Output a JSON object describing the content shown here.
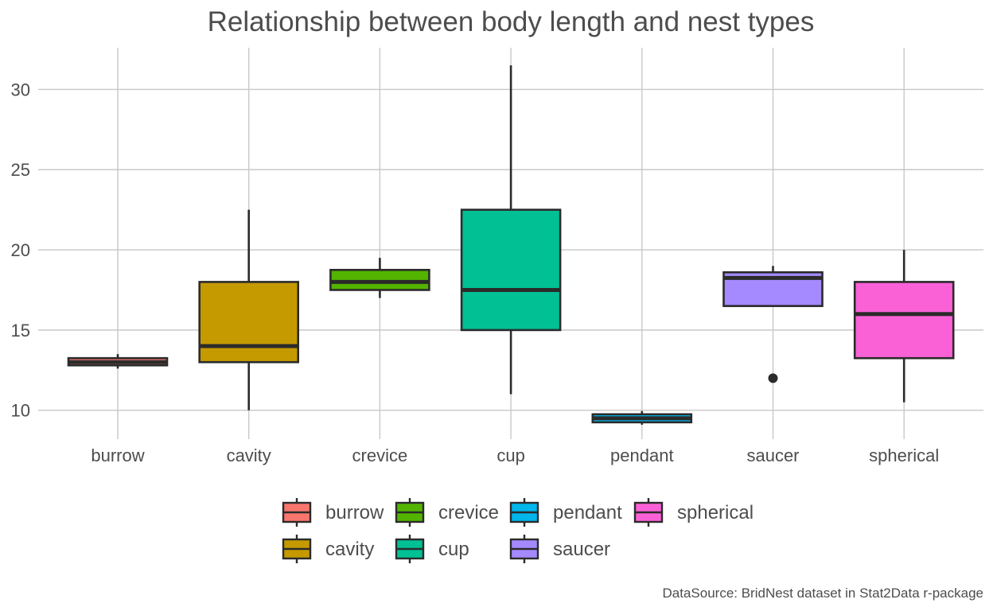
{
  "chart_data": {
    "type": "boxplot",
    "title": "Relationship between body length and nest types",
    "xlabel": "",
    "ylabel": "",
    "caption": "DataSource: BridNest dataset in Stat2Data r-package",
    "ylim": [
      8.2,
      32.6
    ],
    "y_ticks": [
      10,
      15,
      20,
      25,
      30
    ],
    "y_tick_labels": [
      "10",
      "15",
      "20",
      "25",
      "30"
    ],
    "grid": true,
    "legend_position": "bottom",
    "categories": [
      "burrow",
      "cavity",
      "crevice",
      "cup",
      "pendant",
      "saucer",
      "spherical"
    ],
    "colors": {
      "burrow": "#F8766D",
      "cavity": "#C49A00",
      "crevice": "#53B400",
      "cup": "#00C094",
      "pendant": "#00B6EB",
      "saucer": "#A58AFF",
      "spherical": "#FB61D7"
    },
    "boxes": [
      {
        "category": "burrow",
        "min": 12.6,
        "q1": 12.8,
        "median": 13.0,
        "q3": 13.25,
        "max": 13.5,
        "outliers": []
      },
      {
        "category": "cavity",
        "min": 10.0,
        "q1": 13.0,
        "median": 14.0,
        "q3": 18.0,
        "max": 22.5,
        "outliers": []
      },
      {
        "category": "crevice",
        "min": 17.0,
        "q1": 17.5,
        "median": 18.0,
        "q3": 18.75,
        "max": 19.5,
        "outliers": []
      },
      {
        "category": "cup",
        "min": 11.0,
        "q1": 15.0,
        "median": 17.5,
        "q3": 22.5,
        "max": 31.5,
        "outliers": []
      },
      {
        "category": "pendant",
        "min": 9.1,
        "q1": 9.25,
        "median": 9.5,
        "q3": 9.75,
        "max": 9.95,
        "outliers": []
      },
      {
        "category": "saucer",
        "min": 16.5,
        "q1": 16.5,
        "median": 18.25,
        "q3": 18.6,
        "max": 19.0,
        "outliers": [
          12.0
        ]
      },
      {
        "category": "spherical",
        "min": 10.5,
        "q1": 13.25,
        "median": 16.0,
        "q3": 18.0,
        "max": 20.0,
        "outliers": []
      }
    ],
    "legend": {
      "columns": [
        [
          "burrow",
          "cavity"
        ],
        [
          "crevice",
          "cup"
        ],
        [
          "pendant",
          "saucer"
        ],
        [
          "spherical"
        ]
      ]
    }
  }
}
